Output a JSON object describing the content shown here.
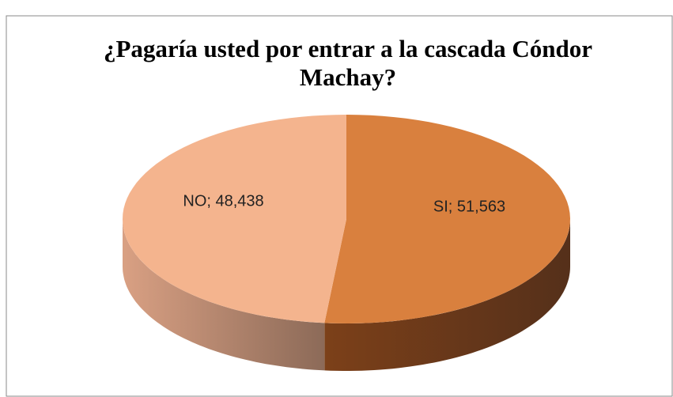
{
  "chart_data": {
    "type": "pie3d",
    "title": "¿Pagaría usted por entrar a la cascada Cóndor Machay?",
    "categories": [
      "SI",
      "NO"
    ],
    "values": [
      51.563,
      48.438
    ],
    "value_labels": [
      "51,563",
      "48,438"
    ],
    "label_separator": "; ",
    "colors": [
      "#d9803e",
      "#f4b48e"
    ]
  }
}
